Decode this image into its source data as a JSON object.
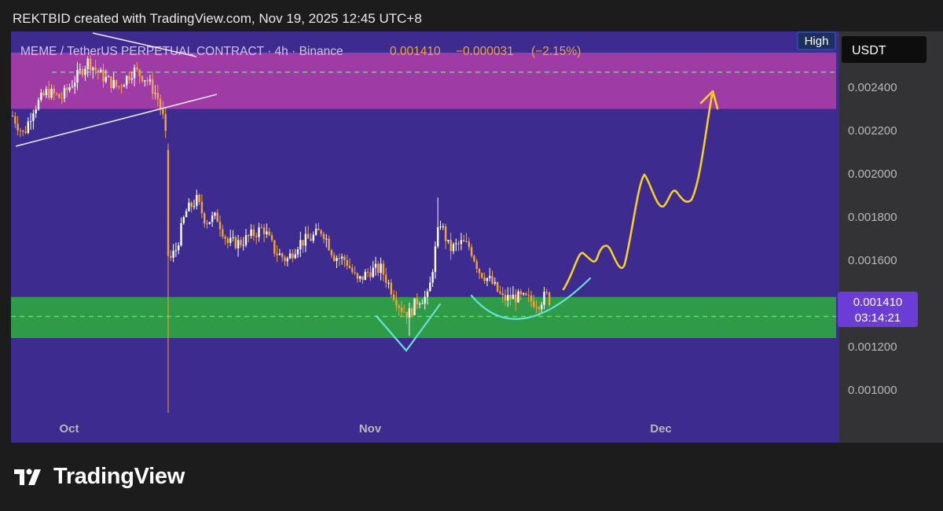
{
  "header": {
    "credit": "REKTBID created with TradingView.com, Nov 19, 2025 12:45 UTC+8"
  },
  "chart_data": {
    "type": "candlestick",
    "symbol_line": "MEME / TetherUS PERPETUAL CONTRACT · 4h · Binance",
    "last_price": "0.001410",
    "change": "−0.000031",
    "change_pct": "(−2.15%)",
    "currency_button": "USDT",
    "high_label": "High",
    "price_tag": {
      "price": "0.001410",
      "countdown": "03:14:21"
    },
    "y_ticks": [
      "0.002400",
      "0.002200",
      "0.002000",
      "0.001800",
      "0.001600",
      "0.001200",
      "0.001000"
    ],
    "y_tick_values": [
      0.0024,
      0.0022,
      0.002,
      0.0018,
      0.0016,
      0.0012,
      0.001
    ],
    "x_ticks": [
      "Oct",
      "Nov",
      "Dec"
    ],
    "ylim": [
      0.00087,
      0.00255
    ],
    "zones": {
      "resistance": {
        "from": 0.0023,
        "to": 0.00256,
        "mid_line": 0.00247,
        "color": "#b03ea8"
      },
      "support": {
        "from": 0.00124,
        "to": 0.00143,
        "mid_line": 0.00134,
        "color": "#2ea043"
      }
    },
    "key_prices": {
      "wick_low": 0.000895,
      "early_low": 0.00213,
      "bounce_high": 0.0019
    },
    "colors": {
      "background": "#3d2b90",
      "up": "#ffffff",
      "down": "#f2a33a",
      "projection": "#f5d020",
      "patterns": "#67e0d6",
      "triangle": "#f0e6ff"
    }
  },
  "footer": {
    "brand": "TradingView"
  }
}
